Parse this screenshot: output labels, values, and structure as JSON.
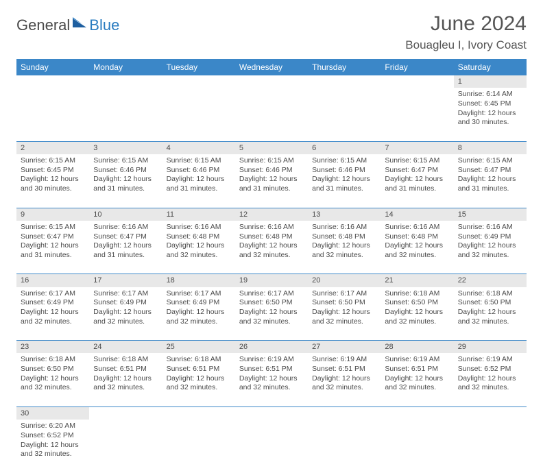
{
  "logo": {
    "main": "General",
    "accent": "Blue"
  },
  "title": {
    "month": "June 2024",
    "location": "Bouagleu I, Ivory Coast"
  },
  "colors": {
    "header_bg": "#3b87c8",
    "header_fg": "#ffffff",
    "daynum_bg": "#e8e8e8",
    "border": "#3b87c8",
    "text": "#4a4a4a",
    "logo_accent": "#2a7cc0"
  },
  "weekdays": [
    "Sunday",
    "Monday",
    "Tuesday",
    "Wednesday",
    "Thursday",
    "Friday",
    "Saturday"
  ],
  "grid": [
    [
      null,
      null,
      null,
      null,
      null,
      null,
      {
        "n": "1",
        "sr": "6:14 AM",
        "ss": "6:45 PM",
        "dl": "12 hours and 30 minutes."
      }
    ],
    [
      {
        "n": "2",
        "sr": "6:15 AM",
        "ss": "6:45 PM",
        "dl": "12 hours and 30 minutes."
      },
      {
        "n": "3",
        "sr": "6:15 AM",
        "ss": "6:46 PM",
        "dl": "12 hours and 31 minutes."
      },
      {
        "n": "4",
        "sr": "6:15 AM",
        "ss": "6:46 PM",
        "dl": "12 hours and 31 minutes."
      },
      {
        "n": "5",
        "sr": "6:15 AM",
        "ss": "6:46 PM",
        "dl": "12 hours and 31 minutes."
      },
      {
        "n": "6",
        "sr": "6:15 AM",
        "ss": "6:46 PM",
        "dl": "12 hours and 31 minutes."
      },
      {
        "n": "7",
        "sr": "6:15 AM",
        "ss": "6:47 PM",
        "dl": "12 hours and 31 minutes."
      },
      {
        "n": "8",
        "sr": "6:15 AM",
        "ss": "6:47 PM",
        "dl": "12 hours and 31 minutes."
      }
    ],
    [
      {
        "n": "9",
        "sr": "6:15 AM",
        "ss": "6:47 PM",
        "dl": "12 hours and 31 minutes."
      },
      {
        "n": "10",
        "sr": "6:16 AM",
        "ss": "6:47 PM",
        "dl": "12 hours and 31 minutes."
      },
      {
        "n": "11",
        "sr": "6:16 AM",
        "ss": "6:48 PM",
        "dl": "12 hours and 32 minutes."
      },
      {
        "n": "12",
        "sr": "6:16 AM",
        "ss": "6:48 PM",
        "dl": "12 hours and 32 minutes."
      },
      {
        "n": "13",
        "sr": "6:16 AM",
        "ss": "6:48 PM",
        "dl": "12 hours and 32 minutes."
      },
      {
        "n": "14",
        "sr": "6:16 AM",
        "ss": "6:48 PM",
        "dl": "12 hours and 32 minutes."
      },
      {
        "n": "15",
        "sr": "6:16 AM",
        "ss": "6:49 PM",
        "dl": "12 hours and 32 minutes."
      }
    ],
    [
      {
        "n": "16",
        "sr": "6:17 AM",
        "ss": "6:49 PM",
        "dl": "12 hours and 32 minutes."
      },
      {
        "n": "17",
        "sr": "6:17 AM",
        "ss": "6:49 PM",
        "dl": "12 hours and 32 minutes."
      },
      {
        "n": "18",
        "sr": "6:17 AM",
        "ss": "6:49 PM",
        "dl": "12 hours and 32 minutes."
      },
      {
        "n": "19",
        "sr": "6:17 AM",
        "ss": "6:50 PM",
        "dl": "12 hours and 32 minutes."
      },
      {
        "n": "20",
        "sr": "6:17 AM",
        "ss": "6:50 PM",
        "dl": "12 hours and 32 minutes."
      },
      {
        "n": "21",
        "sr": "6:18 AM",
        "ss": "6:50 PM",
        "dl": "12 hours and 32 minutes."
      },
      {
        "n": "22",
        "sr": "6:18 AM",
        "ss": "6:50 PM",
        "dl": "12 hours and 32 minutes."
      }
    ],
    [
      {
        "n": "23",
        "sr": "6:18 AM",
        "ss": "6:50 PM",
        "dl": "12 hours and 32 minutes."
      },
      {
        "n": "24",
        "sr": "6:18 AM",
        "ss": "6:51 PM",
        "dl": "12 hours and 32 minutes."
      },
      {
        "n": "25",
        "sr": "6:18 AM",
        "ss": "6:51 PM",
        "dl": "12 hours and 32 minutes."
      },
      {
        "n": "26",
        "sr": "6:19 AM",
        "ss": "6:51 PM",
        "dl": "12 hours and 32 minutes."
      },
      {
        "n": "27",
        "sr": "6:19 AM",
        "ss": "6:51 PM",
        "dl": "12 hours and 32 minutes."
      },
      {
        "n": "28",
        "sr": "6:19 AM",
        "ss": "6:51 PM",
        "dl": "12 hours and 32 minutes."
      },
      {
        "n": "29",
        "sr": "6:19 AM",
        "ss": "6:52 PM",
        "dl": "12 hours and 32 minutes."
      }
    ],
    [
      {
        "n": "30",
        "sr": "6:20 AM",
        "ss": "6:52 PM",
        "dl": "12 hours and 32 minutes."
      },
      null,
      null,
      null,
      null,
      null,
      null
    ]
  ],
  "labels": {
    "sunrise": "Sunrise:",
    "sunset": "Sunset:",
    "daylight": "Daylight:"
  }
}
